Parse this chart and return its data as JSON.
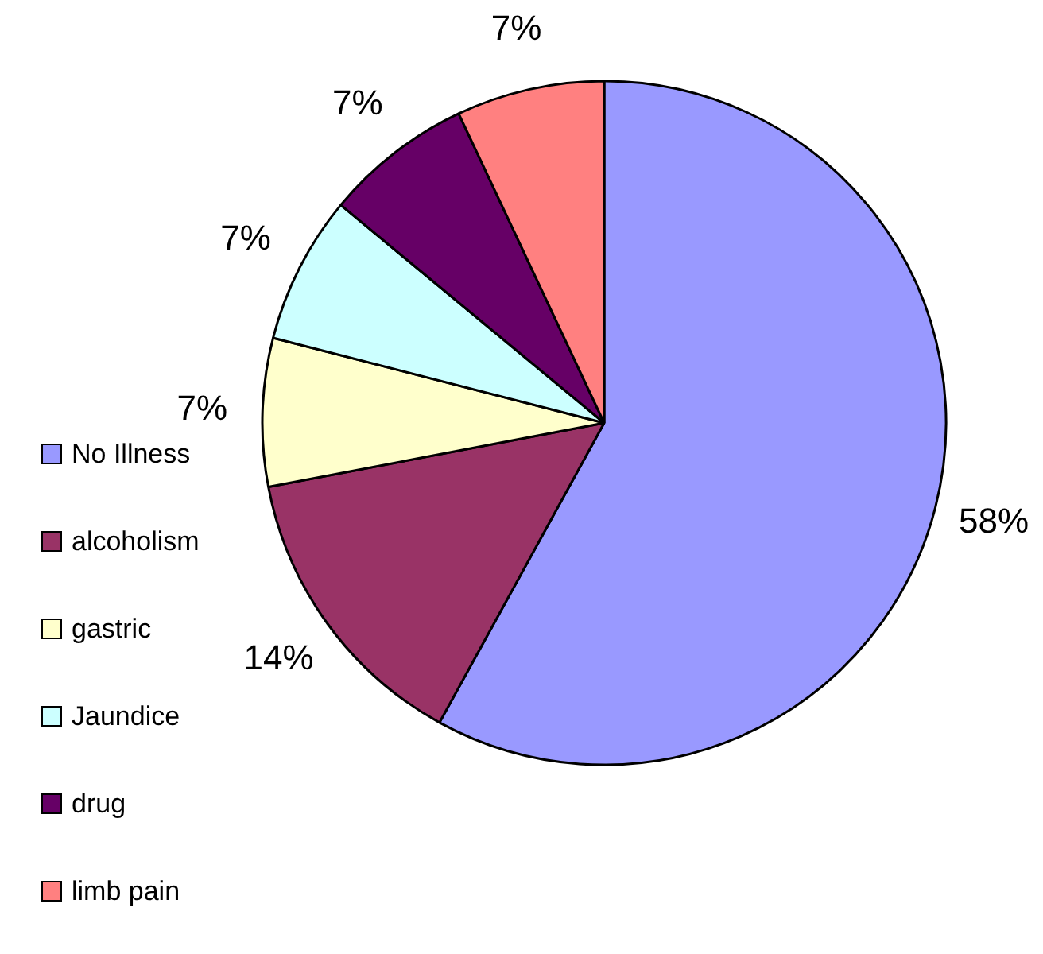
{
  "chart_data": {
    "type": "pie",
    "categories": [
      "No Illness",
      "alcoholism",
      "gastric",
      "Jaundice",
      "drug",
      "limb pain"
    ],
    "values": [
      58,
      14,
      7,
      7,
      7,
      7
    ],
    "colors": [
      "#9999ff",
      "#993366",
      "#ffffcc",
      "#ccffff",
      "#660066",
      "#ff8080"
    ],
    "value_labels": [
      "58%",
      "14%",
      "7%",
      "7%",
      "7%",
      "7%"
    ],
    "legend": "bottom left"
  }
}
